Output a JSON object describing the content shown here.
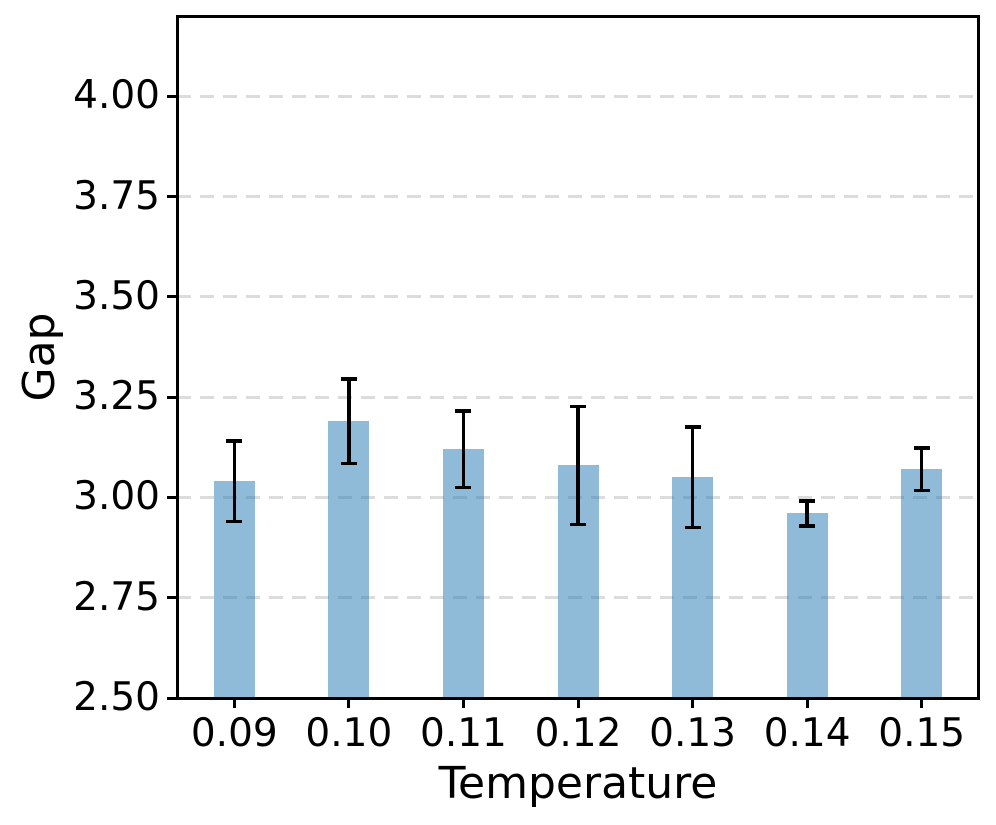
{
  "chart_data": {
    "type": "bar",
    "title": "",
    "xlabel": "Temperature",
    "ylabel": "Gap",
    "categories": [
      "0.09",
      "0.10",
      "0.11",
      "0.12",
      "0.13",
      "0.14",
      "0.15"
    ],
    "values": [
      3.04,
      3.19,
      3.12,
      3.08,
      3.05,
      2.96,
      3.07
    ],
    "error_bars": [
      0.1,
      0.105,
      0.095,
      0.147,
      0.125,
      0.031,
      0.053
    ],
    "ylim": [
      2.5,
      4.2
    ],
    "yticks": [
      2.5,
      2.75,
      3.0,
      3.25,
      3.5,
      3.75,
      4.0
    ],
    "ytick_labels": [
      "2.50",
      "2.75",
      "3.00",
      "3.25",
      "3.50",
      "3.75",
      "4.00"
    ],
    "grid": {
      "axis": "y",
      "style": "dashed",
      "color": "#dcdcdc"
    },
    "legend_position": "none",
    "colors": {
      "bar": "#1f77b4",
      "bar_alpha": 0.5,
      "bar_rendered": "#8fbbd9",
      "error": "#000000",
      "spine": "#000000",
      "text": "#000000",
      "background": "#ffffff"
    }
  }
}
